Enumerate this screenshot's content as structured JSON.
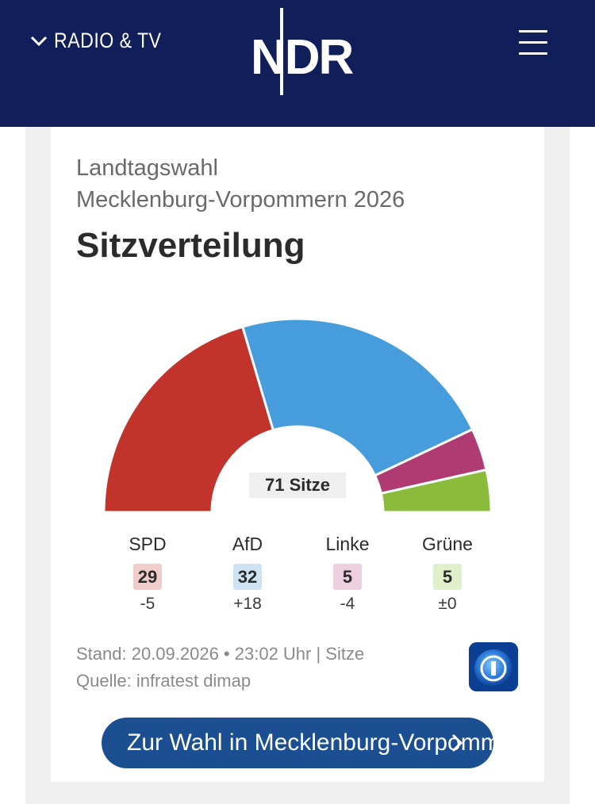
{
  "header": {
    "nav_label": "RADIO & TV",
    "logo_text": "NDR",
    "background": "#101e5a",
    "icons": {
      "nav": "chevron-down-icon",
      "menu": "hamburger-menu-icon"
    }
  },
  "card": {
    "subtitle_line1": "Landtagswahl",
    "subtitle_line2": "Mecklenburg-Vorpommern 2026",
    "title": "Sitzverteilung",
    "total_label": "71 Sitze",
    "meta_line1": "Stand: 20.09.2026 • 23:02 Uhr | Sitze",
    "meta_line2": "Quelle: infratest dimap",
    "source_logo": "tagesschau-logo-icon",
    "cta_label": "Zur Wahl in Mecklenburg-Vorpommern"
  },
  "chart_data": {
    "type": "pie",
    "variant": "parliament-half-donut",
    "title": "Sitzverteilung",
    "total_seats": 71,
    "categories": [
      "SPD",
      "AfD",
      "Linke",
      "Grüne"
    ],
    "values": [
      29,
      32,
      5,
      5
    ],
    "changes": [
      "-5",
      "+18",
      "-4",
      "±0"
    ],
    "colors": [
      "#c1332b",
      "#479ddb",
      "#b03a72",
      "#8bbb3b"
    ],
    "badge_colors": [
      "#f0cdca",
      "#cde3f3",
      "#ecd0df",
      "#e1efcb"
    ]
  }
}
